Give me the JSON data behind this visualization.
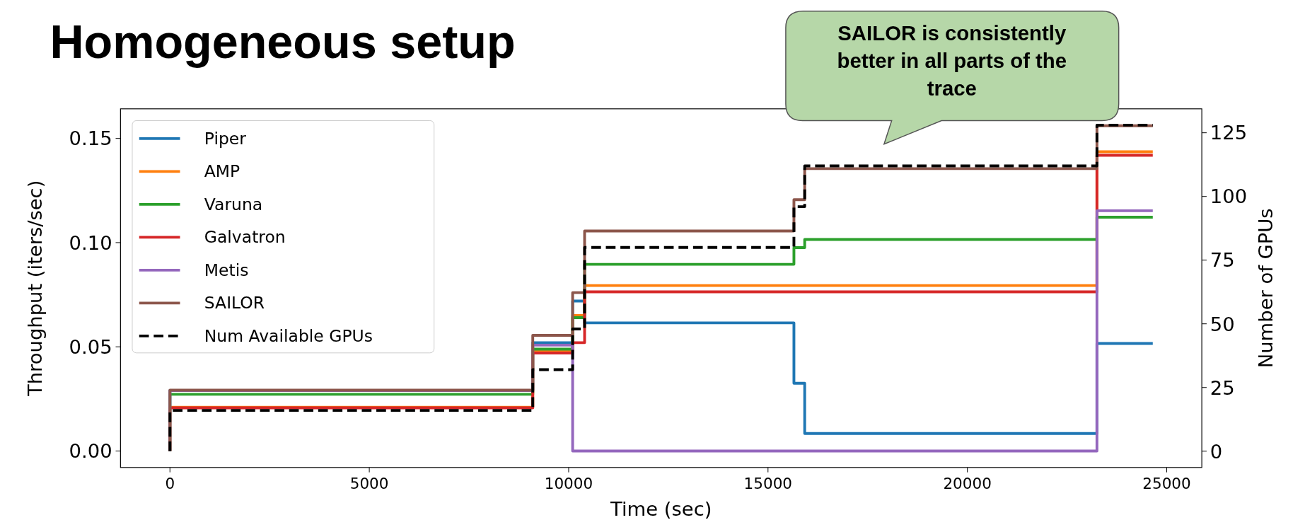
{
  "chart_data": {
    "type": "step",
    "title": "Homogeneous setup",
    "xlabel": "Time (sec)",
    "ylabel": "Throughput (iters/sec)",
    "y2label": "Number of GPUs",
    "annotations": [
      "SAILOR is consistently better in all parts of the trace"
    ],
    "x": [
      0,
      0,
      9100,
      10100,
      10400,
      15650,
      15920,
      23250,
      24650
    ],
    "series": [
      {
        "name": "Piper",
        "color": "#1f77b4",
        "values": [
          0,
          0.029,
          0.052,
          0.072,
          0.0615,
          0.0325,
          0.0084,
          0.0516,
          0.0516
        ]
      },
      {
        "name": "AMP",
        "color": "#ff7f0e",
        "values": [
          0,
          0.021,
          0.048,
          0.065,
          0.0794,
          0.0794,
          0.0794,
          0.1436,
          0.1436
        ]
      },
      {
        "name": "Varuna",
        "color": "#2ca02c",
        "values": [
          0,
          0.0272,
          0.0489,
          0.064,
          0.0896,
          0.0976,
          0.1015,
          0.1122,
          0.1122
        ]
      },
      {
        "name": "Galvatron",
        "color": "#d62728",
        "values": [
          0,
          0.0207,
          0.047,
          0.052,
          0.0764,
          0.0764,
          0.0764,
          0.1419,
          0.1419
        ]
      },
      {
        "name": "Metis",
        "color": "#9467bd",
        "values": [
          0,
          0.029,
          0.0508,
          0,
          0,
          0,
          0,
          0.1153,
          0.1153
        ]
      },
      {
        "name": "SAILOR",
        "color": "#8c564b",
        "values": [
          0,
          0.0292,
          0.0555,
          0.076,
          0.1056,
          0.1206,
          0.1355,
          0.1561,
          0.1561
        ]
      },
      {
        "name": "Num Available GPUs",
        "color": "#000000",
        "axis": "y2",
        "line_style": "dashed",
        "values": [
          0,
          16,
          32,
          48,
          80,
          96,
          112,
          128,
          128
        ]
      }
    ],
    "xlim": [
      -1240,
      25880
    ],
    "xticks": [
      0,
      5000,
      10000,
      15000,
      20000,
      25000
    ],
    "ylim": [
      -0.0079,
      0.1642
    ],
    "yticks": [
      {
        "value": 0,
        "label": "0.00"
      },
      {
        "value": 0.05,
        "label": "0.05"
      },
      {
        "value": 0.1,
        "label": "0.10"
      },
      {
        "value": 0.15,
        "label": "0.15"
      }
    ],
    "y2lim": [
      -6.4,
      134.4
    ],
    "y2ticks": [
      0,
      25,
      50,
      75,
      100,
      125
    ],
    "grid": false,
    "legend": "top left",
    "line_style": "solid"
  }
}
